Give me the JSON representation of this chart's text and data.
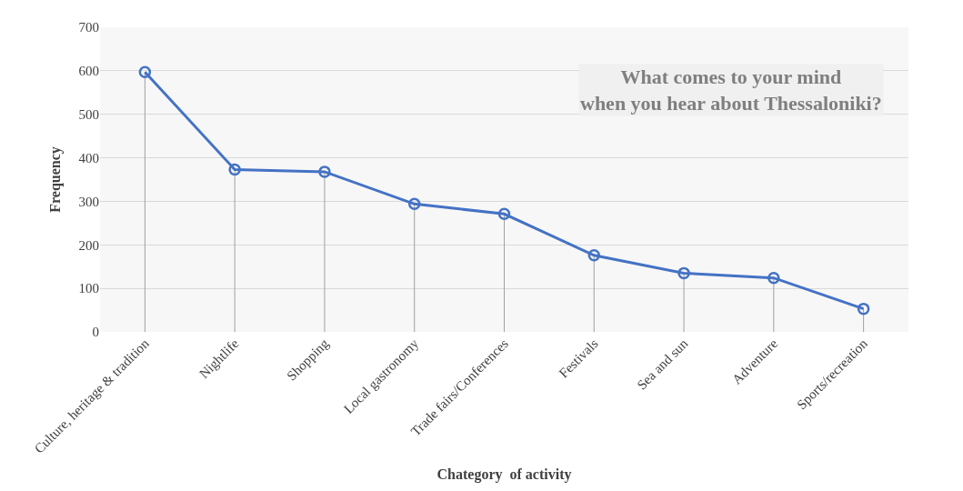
{
  "chart_data": {
    "type": "line",
    "title": "What comes to your mind\nwhen you hear about Thessaloniki?",
    "xlabel": "Chategory  of activity",
    "ylabel": "Frequency",
    "categories": [
      "Culture, heritage & tradition",
      "Nightlife",
      "Shopping",
      "Local gastronomy",
      "Trade fairs/Conferences",
      "Festivals",
      "Sea and sun",
      "Adventure",
      "Sports/recreation"
    ],
    "series": [
      {
        "color": "#4472c4",
        "values": [
          597,
          373,
          368,
          294,
          271,
          176,
          135,
          124,
          53
        ],
        "errors": [
          [
            0,
            597
          ],
          [
            0,
            373
          ],
          [
            0,
            368
          ],
          [
            0,
            294
          ],
          [
            0,
            271
          ],
          [
            0,
            176
          ],
          [
            0,
            135
          ],
          [
            0,
            124
          ],
          [
            0,
            53
          ]
        ]
      }
    ],
    "ylim": [
      0,
      700
    ],
    "yticks": [
      0,
      100,
      200,
      300,
      400,
      500,
      600,
      700
    ],
    "grid": "y",
    "marker": "circle",
    "line_style": "solid"
  }
}
